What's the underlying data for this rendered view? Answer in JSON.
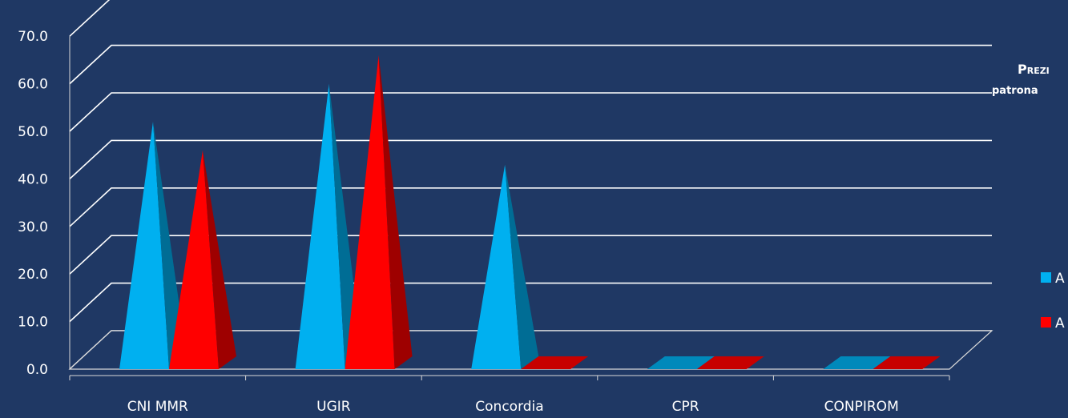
{
  "chart_data": {
    "type": "bar",
    "subtype": "3d-pyramid",
    "title_lines": [
      "Prezi",
      "patrona"
    ],
    "categories": [
      "CNI MMR",
      "UGIR",
      "Concordia",
      "CPR",
      "CONPIROM"
    ],
    "series": [
      {
        "name": "A",
        "color": "#00b0f0",
        "values": [
          52,
          60,
          43,
          0,
          0
        ]
      },
      {
        "name": "A",
        "color": "#ff0000",
        "values": [
          46,
          66,
          0,
          0,
          0
        ]
      }
    ],
    "y_ticks": [
      "0.0",
      "10.0",
      "20.0",
      "30.0",
      "40.0",
      "50.0",
      "60.0",
      "70.0"
    ],
    "ylim": [
      0,
      80
    ],
    "grid": true,
    "legend_position": "right"
  },
  "colors": {
    "background": "#1f3864",
    "gridline": "#ffffff",
    "text": "#ffffff"
  }
}
